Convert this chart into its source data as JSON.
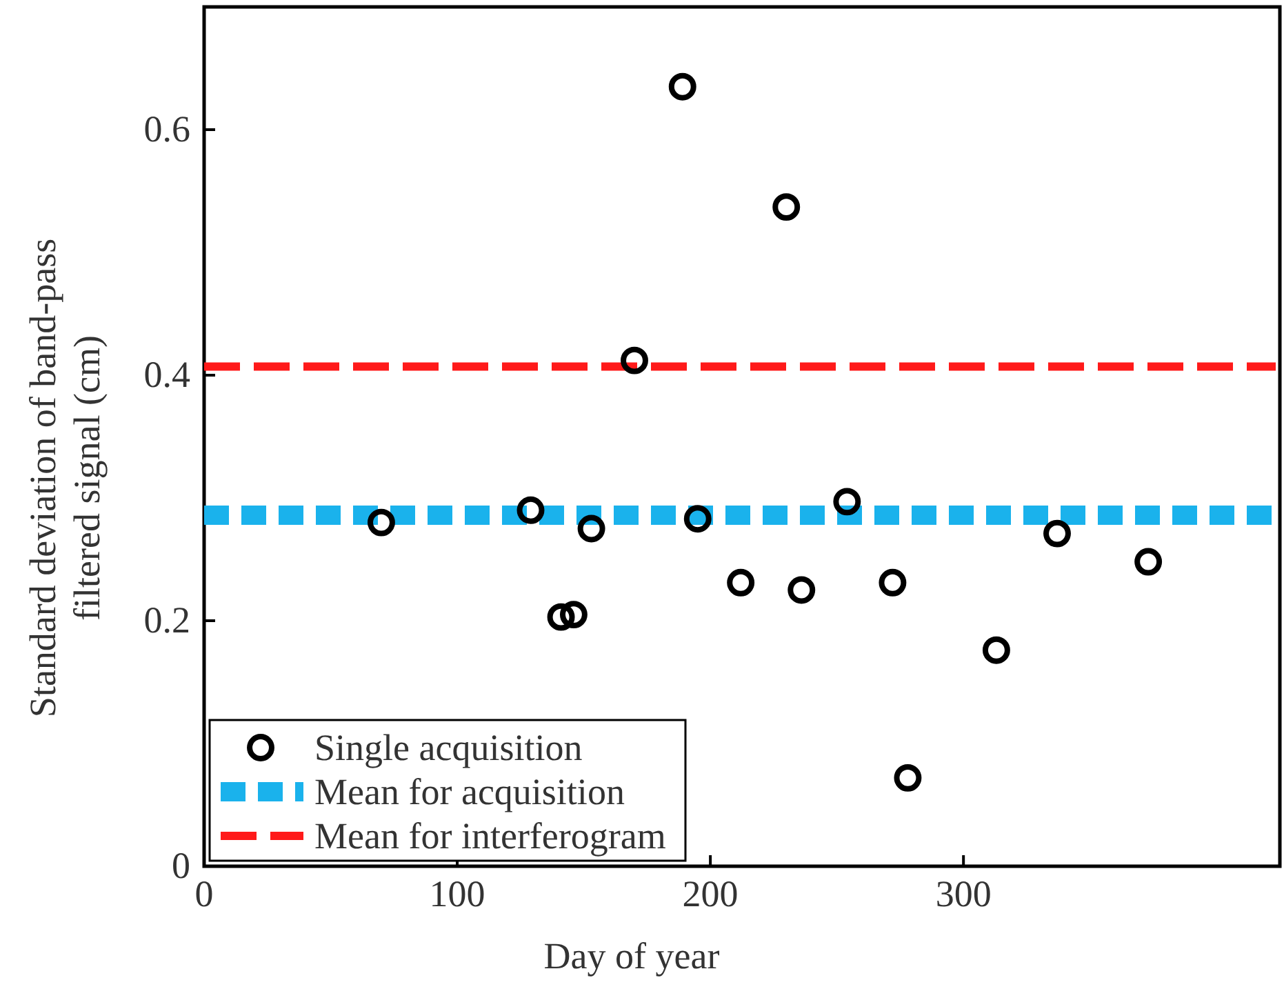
{
  "chart_data": {
    "type": "scatter",
    "xlabel": "Day of year",
    "ylabel": "Standard deviation of band-pass filtered signal (cm)",
    "xlim": [
      0,
      425
    ],
    "xticks": [
      0,
      100,
      200,
      300
    ],
    "ylim": [
      0,
      0.7
    ],
    "yticks": [
      0,
      0.2,
      0.4,
      0.6
    ],
    "marker": "circle",
    "legend": "bottom left",
    "grid": false,
    "series": [
      {
        "name": "Single acquisition",
        "color": "#000000",
        "x": [
          70,
          129,
          141,
          146,
          153,
          170,
          189,
          195,
          212,
          230,
          236,
          254,
          272,
          278,
          313,
          337,
          373
        ],
        "values": [
          0.28,
          0.29,
          0.203,
          0.205,
          0.275,
          0.412,
          0.635,
          0.283,
          0.231,
          0.537,
          0.225,
          0.297,
          0.231,
          0.072,
          0.176,
          0.271,
          0.248
        ]
      }
    ],
    "ref_lines": [
      {
        "axis": "y",
        "value": 0.286,
        "label": "Mean for acquisition",
        "color": "#1ab2ec",
        "line_style": "dashed"
      },
      {
        "axis": "y",
        "value": 0.407,
        "label": "Mean for interferogram",
        "color": "#ff1a1a",
        "line_style": "dashed"
      }
    ]
  }
}
